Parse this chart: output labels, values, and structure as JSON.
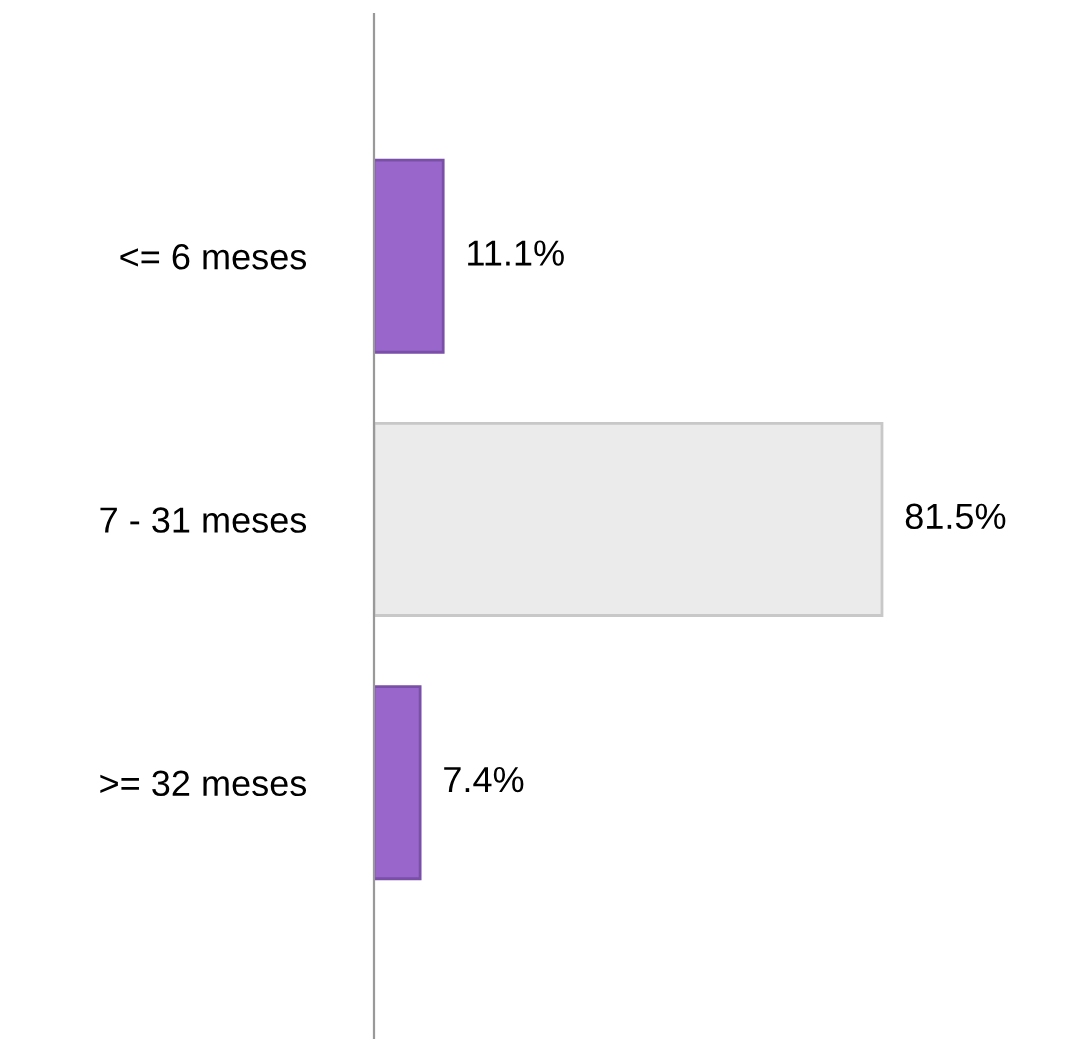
{
  "chart_data": {
    "type": "bar",
    "orientation": "horizontal",
    "categories": [
      "<= 6 meses",
      "7 - 31 meses",
      ">= 32 meses"
    ],
    "values": [
      11.1,
      81.5,
      7.4
    ],
    "colors": [
      "#9966cc",
      "#ebebeb",
      "#9966cc"
    ],
    "value_labels": [
      "11.1%",
      "81.5%",
      "7.4%"
    ],
    "grid": false,
    "legend": false
  }
}
